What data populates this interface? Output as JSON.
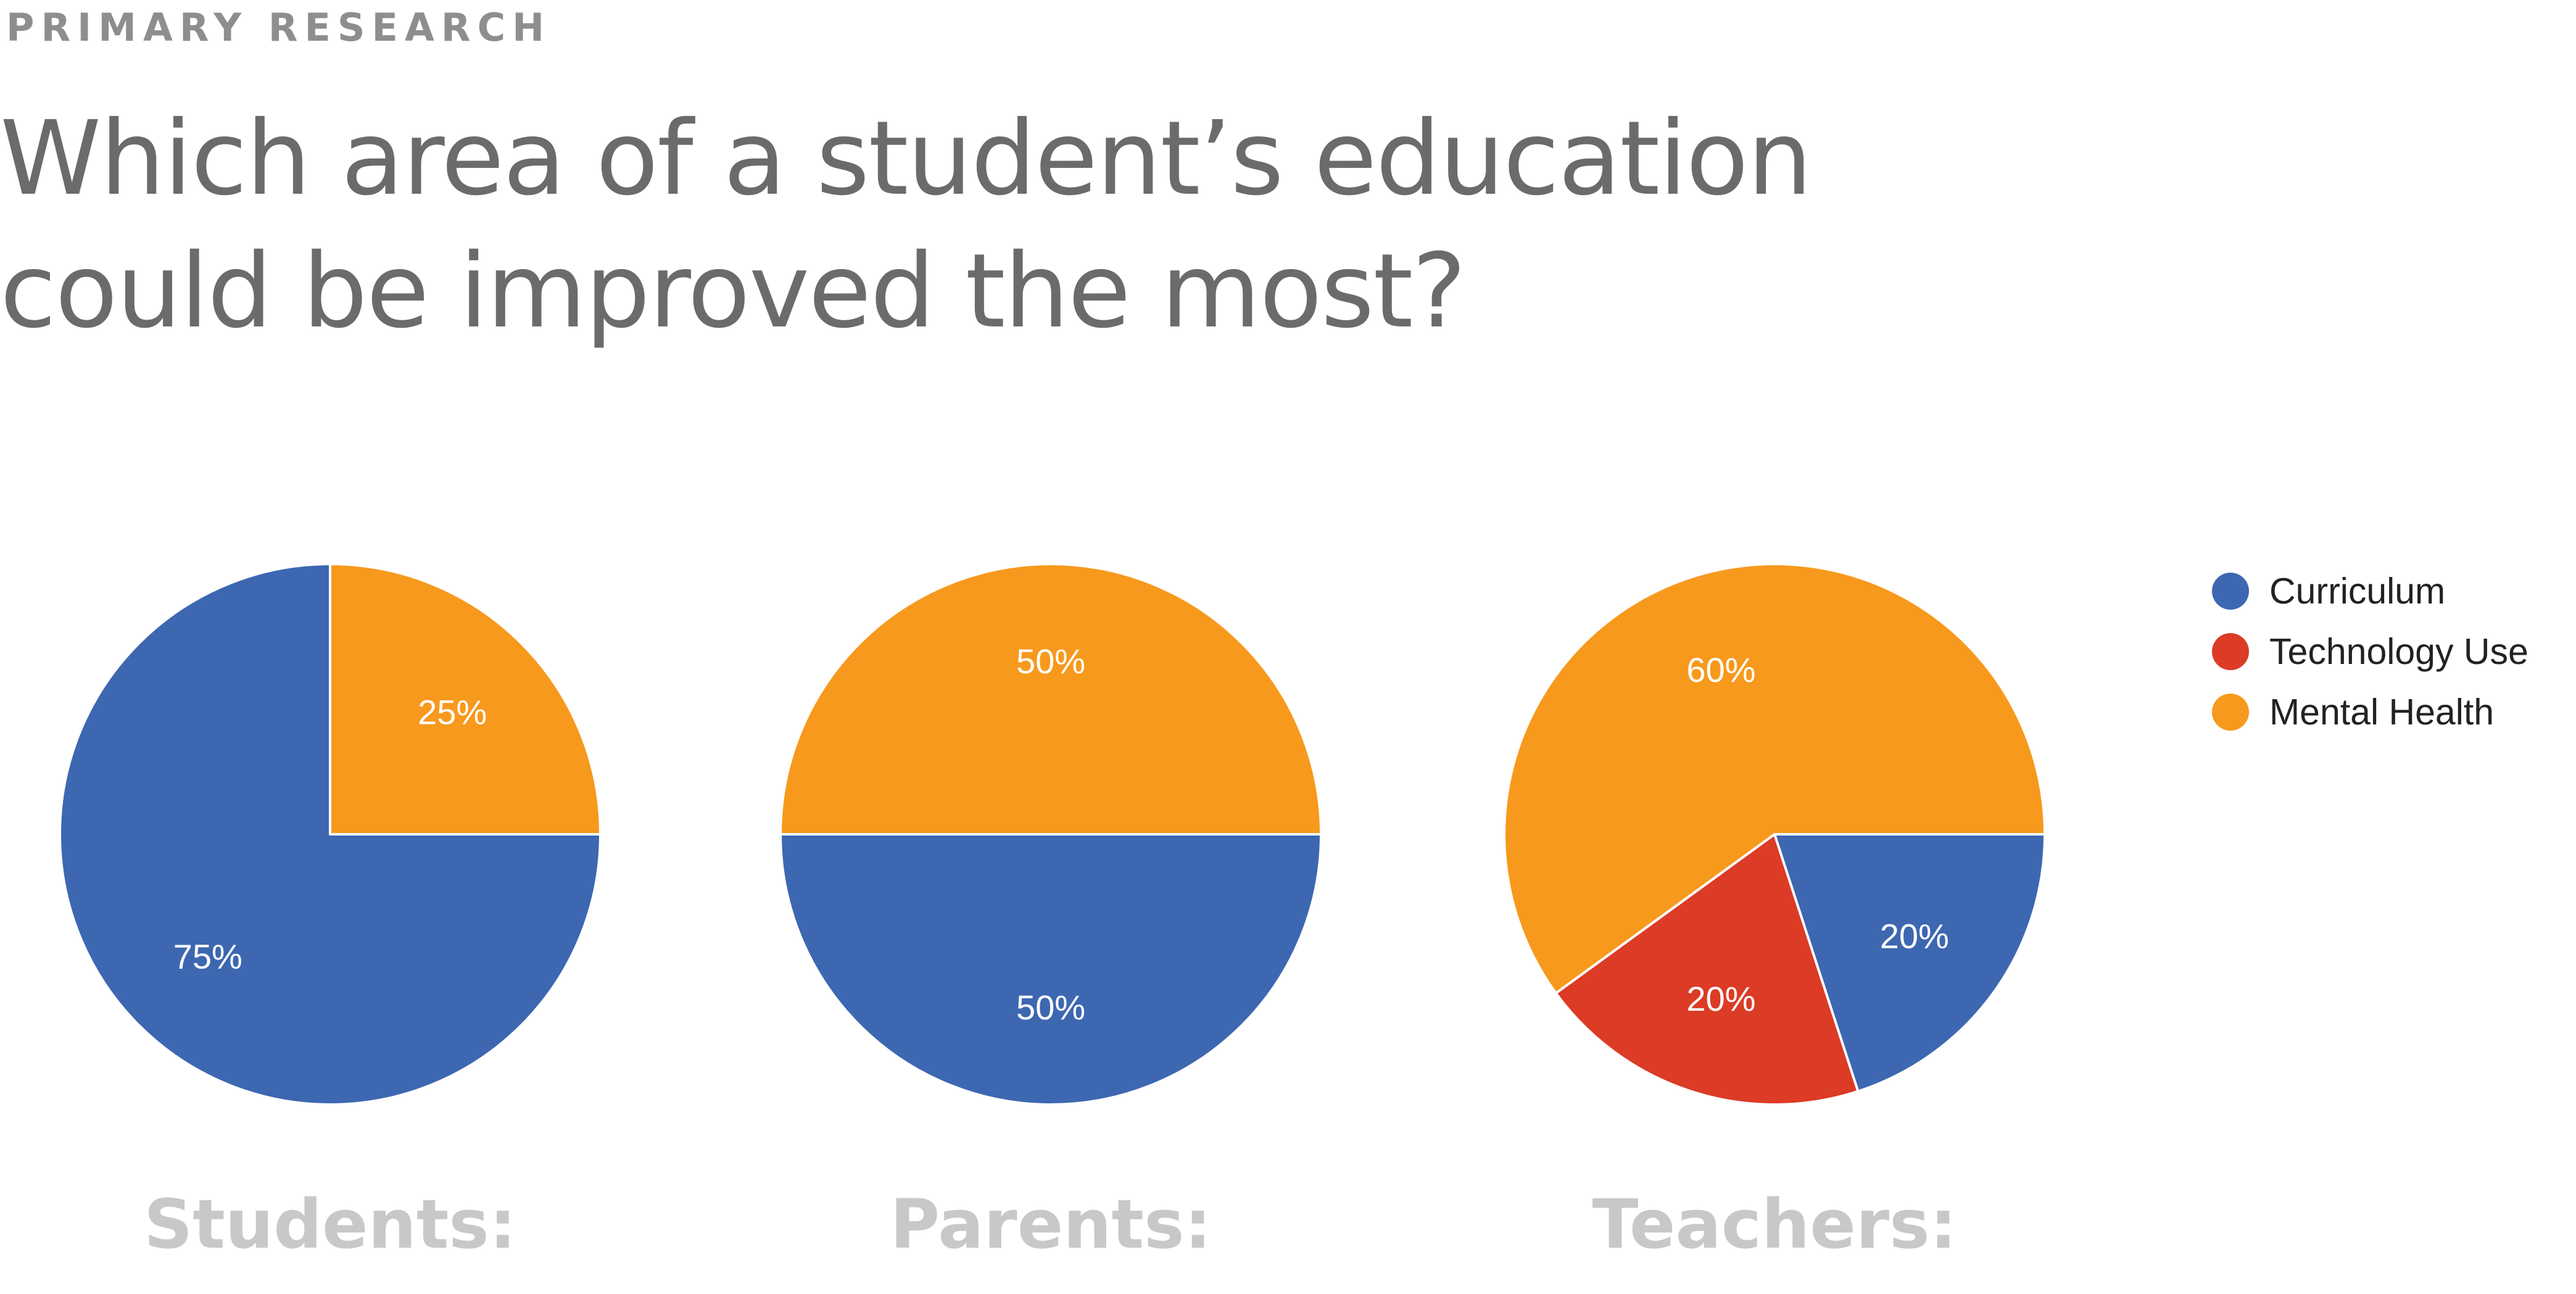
{
  "header": {
    "eyebrow": "PRIMARY RESEARCH",
    "title_line1": "Which area of a student’s education",
    "title_line2": "could be improved the most?"
  },
  "legend": [
    {
      "name": "Curriculum",
      "color": "#3d67b1"
    },
    {
      "name": "Technology Use",
      "color": "#dc3b26"
    },
    {
      "name": "Mental Health",
      "color": "#f7991c"
    }
  ],
  "chart_data": [
    {
      "type": "pie",
      "title": "Students:",
      "slices": [
        {
          "name": "Mental Health",
          "value": 25,
          "label": "25%",
          "color": "#f7991c"
        },
        {
          "name": "Curriculum",
          "value": 75,
          "label": "75%",
          "color": "#3d67b1"
        }
      ]
    },
    {
      "type": "pie",
      "title": "Parents:",
      "slices": [
        {
          "name": "Curriculum",
          "value": 50,
          "label": "50%",
          "color": "#3d67b1"
        },
        {
          "name": "Mental Health",
          "value": 50,
          "label": "50%",
          "color": "#f7991c"
        }
      ]
    },
    {
      "type": "pie",
      "title": "Teachers:",
      "slices": [
        {
          "name": "Curriculum",
          "value": 20,
          "label": "20%",
          "color": "#3d67b1"
        },
        {
          "name": "Technology Use",
          "value": 20,
          "label": "20%",
          "color": "#dc3b26"
        },
        {
          "name": "Mental Health",
          "value": 60,
          "label": "60%",
          "color": "#f7991c"
        }
      ]
    }
  ]
}
